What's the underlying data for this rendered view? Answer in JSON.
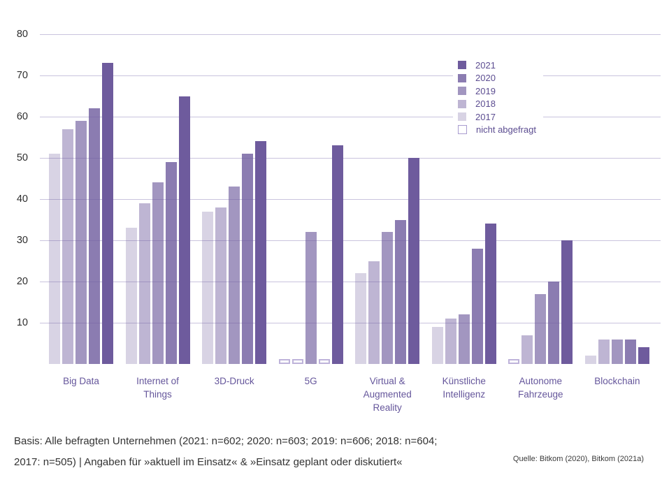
{
  "chart_data": {
    "type": "bar",
    "title": "",
    "categories": [
      "Big Data",
      "Internet of\nThings",
      "3D-Druck",
      "5G",
      "Virtual &\nAugmented\nReality",
      "Künstliche\nIntelligenz",
      "Autonome\nFahrzeuge",
      "Blockchain"
    ],
    "series": [
      {
        "name": "2017",
        "color": "rgba(110,91,157,0.27)",
        "values": [
          51,
          33,
          37,
          null,
          22,
          9,
          null,
          2
        ]
      },
      {
        "name": "2018",
        "color": "rgba(110,91,157,0.45)",
        "values": [
          57,
          39,
          38,
          null,
          25,
          11,
          7,
          6
        ]
      },
      {
        "name": "2019",
        "color": "rgba(110,91,157,0.64)",
        "values": [
          59,
          44,
          43,
          32,
          32,
          12,
          17,
          6
        ]
      },
      {
        "name": "2020",
        "color": "rgba(110,91,157,0.80)",
        "values": [
          62,
          49,
          51,
          null,
          35,
          28,
          20,
          6
        ]
      },
      {
        "name": "2021",
        "color": "rgba(110,91,157,1)",
        "values": [
          73,
          65,
          54,
          53,
          50,
          34,
          30,
          4
        ]
      }
    ],
    "null_meaning": "nicht abgefragt",
    "ylim": [
      0,
      80
    ],
    "yticks": [
      10,
      20,
      30,
      40,
      50,
      60,
      70,
      80
    ],
    "grid": true,
    "legend_position": "top-right-inside",
    "legend_entries": [
      "2021",
      "2020",
      "2019",
      "2018",
      "2017",
      "nicht abgefragt"
    ]
  },
  "colors": {
    "base_purple": "#6E5B9D",
    "gridline": "#C9C3DE",
    "axis_label": "#2E2E2E",
    "category_label": "#65569B",
    "legend_text": "#5C4D91",
    "na_border": "#BEB3DA",
    "footnote_text": "#333333"
  },
  "footnote": {
    "line1": "Basis: Alle befragten Unternehmen (2021: n=602; 2020: n=603; 2019: n=606; 2018: n=604;",
    "line2": "2017: n=505) | Angaben für »aktuell im Einsatz« & »Einsatz geplant oder diskutiert«"
  },
  "source": "Quelle: Bitkom (2020), Bitkom (2021a)"
}
